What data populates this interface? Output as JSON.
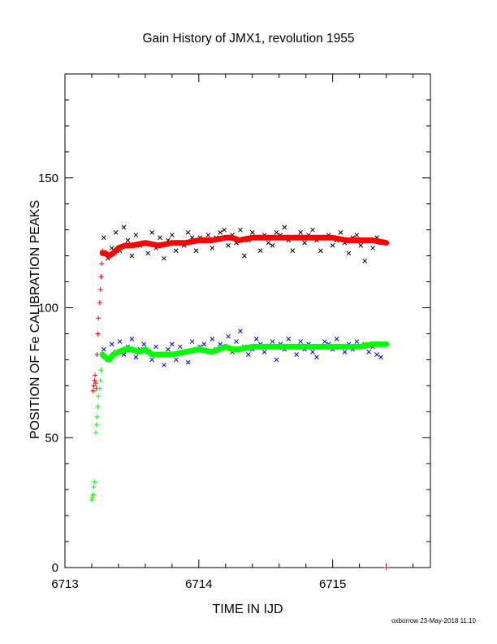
{
  "chart_data": {
    "type": "scatter",
    "title": "Gain History of JMX1, revolution 1955",
    "xlabel": "TIME IN IJD",
    "ylabel": "POSITION OF Fe CALIBRATION PEAKS",
    "xlim": [
      6713.0,
      6715.73
    ],
    "ylim": [
      0,
      190
    ],
    "x_ticks": [
      "6713",
      "6714",
      "6715"
    ],
    "x_tick_values": [
      6713,
      6714,
      6715
    ],
    "y_ticks": [
      "0",
      "50",
      "100",
      "150"
    ],
    "y_tick_values": [
      0,
      50,
      100,
      150
    ],
    "grid": false,
    "footer": "oxborrow 23-May-2018 11:10",
    "series": [
      {
        "marker": "x",
        "color": "#000000",
        "x": [
          6713.29,
          6713.32,
          6713.35,
          6713.38,
          6713.41,
          6713.44,
          6713.47,
          6713.5,
          6713.53,
          6713.56,
          6713.59,
          6713.62,
          6713.65,
          6713.68,
          6713.71,
          6713.74,
          6713.77,
          6713.8,
          6713.83,
          6713.86,
          6713.89,
          6713.92,
          6713.95,
          6713.98,
          6714.01,
          6714.04,
          6714.07,
          6714.1,
          6714.13,
          6714.16,
          6714.19,
          6714.22,
          6714.25,
          6714.28,
          6714.31,
          6714.34,
          6714.37,
          6714.4,
          6714.43,
          6714.46,
          6714.49,
          6714.52,
          6714.55,
          6714.58,
          6714.61,
          6714.64,
          6714.67,
          6714.7,
          6714.73,
          6714.76,
          6714.79,
          6714.82,
          6714.85,
          6714.88,
          6714.91,
          6714.94,
          6714.97,
          6715.0,
          6715.03,
          6715.06,
          6715.09,
          6715.12,
          6715.15,
          6715.18,
          6715.21,
          6715.24,
          6715.27,
          6715.3,
          6715.33,
          6715.36
        ],
        "y": [
          127,
          119,
          123,
          129,
          122,
          131,
          126,
          120,
          128,
          124,
          125,
          121,
          129,
          123,
          127,
          119,
          126,
          128,
          122,
          125,
          124,
          129,
          127,
          122,
          127,
          126,
          128,
          123,
          127,
          129,
          130,
          124,
          128,
          125,
          130,
          120,
          126,
          129,
          127,
          122,
          128,
          125,
          124,
          129,
          128,
          131,
          126,
          122,
          127,
          129,
          125,
          128,
          130,
          126,
          122,
          127,
          128,
          124,
          126,
          129,
          125,
          121,
          127,
          128,
          124,
          118,
          126,
          123,
          127,
          125
        ]
      },
      {
        "marker": "x",
        "color": "#0000ff",
        "x": [
          6713.29,
          6713.32,
          6713.35,
          6713.38,
          6713.41,
          6713.44,
          6713.47,
          6713.5,
          6713.53,
          6713.56,
          6713.59,
          6713.62,
          6713.65,
          6713.68,
          6713.71,
          6713.74,
          6713.77,
          6713.8,
          6713.83,
          6713.86,
          6713.89,
          6713.92,
          6713.95,
          6713.98,
          6714.01,
          6714.04,
          6714.07,
          6714.1,
          6714.13,
          6714.16,
          6714.19,
          6714.22,
          6714.25,
          6714.28,
          6714.31,
          6714.34,
          6714.37,
          6714.4,
          6714.43,
          6714.46,
          6714.49,
          6714.52,
          6714.55,
          6714.58,
          6714.61,
          6714.64,
          6714.67,
          6714.7,
          6714.73,
          6714.76,
          6714.79,
          6714.82,
          6714.85,
          6714.88,
          6714.91,
          6714.94,
          6714.97,
          6715.0,
          6715.03,
          6715.06,
          6715.09,
          6715.12,
          6715.15,
          6715.18,
          6715.21,
          6715.24,
          6715.27,
          6715.3,
          6715.33,
          6715.36
        ],
        "y": [
          84,
          80,
          86,
          83,
          87,
          82,
          85,
          88,
          81,
          84,
          86,
          83,
          80,
          85,
          82,
          78,
          84,
          86,
          80,
          85,
          83,
          79,
          87,
          84,
          85,
          86,
          83,
          88,
          84,
          86,
          85,
          89,
          83,
          87,
          91,
          85,
          82,
          84,
          88,
          86,
          83,
          85,
          87,
          80,
          86,
          84,
          88,
          85,
          82,
          87,
          84,
          86,
          83,
          81,
          85,
          87,
          86,
          84,
          88,
          85,
          83,
          86,
          84,
          87,
          85,
          86,
          83,
          85,
          82,
          81
        ]
      },
      {
        "marker": "+",
        "color": "#ff0000",
        "x": [
          6713.21,
          6713.215,
          6713.22,
          6713.225,
          6713.23,
          6713.235,
          6713.24,
          6713.245,
          6713.25,
          6713.26,
          6713.265,
          6713.27,
          6713.275,
          6713.28,
          6715.4
        ],
        "y": [
          68,
          70,
          72,
          74,
          71,
          69,
          82,
          90,
          96,
          102,
          107,
          112,
          117,
          122,
          0
        ]
      },
      {
        "marker": "+",
        "color": "#00ff00",
        "x": [
          6713.2,
          6713.205,
          6713.21,
          6713.215,
          6713.22,
          6713.23,
          6713.235,
          6713.24,
          6713.245,
          6713.25,
          6713.26,
          6713.265,
          6713.27
        ],
        "y": [
          26,
          27,
          28,
          31,
          33,
          52,
          55,
          58,
          62,
          66,
          69,
          72,
          76
        ]
      },
      {
        "marker": "line",
        "color": "#ff0000",
        "x": [
          6713.28,
          6713.3,
          6713.33,
          6713.36,
          6713.4,
          6713.45,
          6713.5,
          6713.6,
          6713.7,
          6713.8,
          6713.9,
          6714.0,
          6714.1,
          6714.2,
          6714.25,
          6714.3,
          6714.4,
          6714.5,
          6714.6,
          6714.7,
          6714.8,
          6714.9,
          6715.0,
          6715.1,
          6715.2,
          6715.3,
          6715.4
        ],
        "y": [
          121,
          121,
          120,
          121,
          123,
          124,
          124,
          125,
          124,
          125,
          125,
          126,
          126,
          127,
          127,
          126,
          127,
          127,
          127,
          127,
          127,
          127,
          127,
          126,
          126,
          126,
          125
        ]
      },
      {
        "marker": "line",
        "color": "#00ff00",
        "x": [
          6713.28,
          6713.3,
          6713.33,
          6713.36,
          6713.4,
          6713.45,
          6713.5,
          6713.55,
          6713.6,
          6713.65,
          6713.7,
          6713.8,
          6713.9,
          6714.0,
          6714.1,
          6714.2,
          6714.25,
          6714.3,
          6714.4,
          6714.5,
          6714.6,
          6714.7,
          6714.8,
          6714.9,
          6715.0,
          6715.1,
          6715.2,
          6715.3,
          6715.4
        ],
        "y": [
          82,
          81,
          80,
          82,
          83,
          84,
          84,
          83,
          84,
          82,
          82,
          82,
          83,
          84,
          83,
          85,
          84,
          84,
          85,
          85,
          85,
          85,
          85,
          85,
          85,
          85,
          85,
          86,
          86
        ]
      }
    ]
  }
}
